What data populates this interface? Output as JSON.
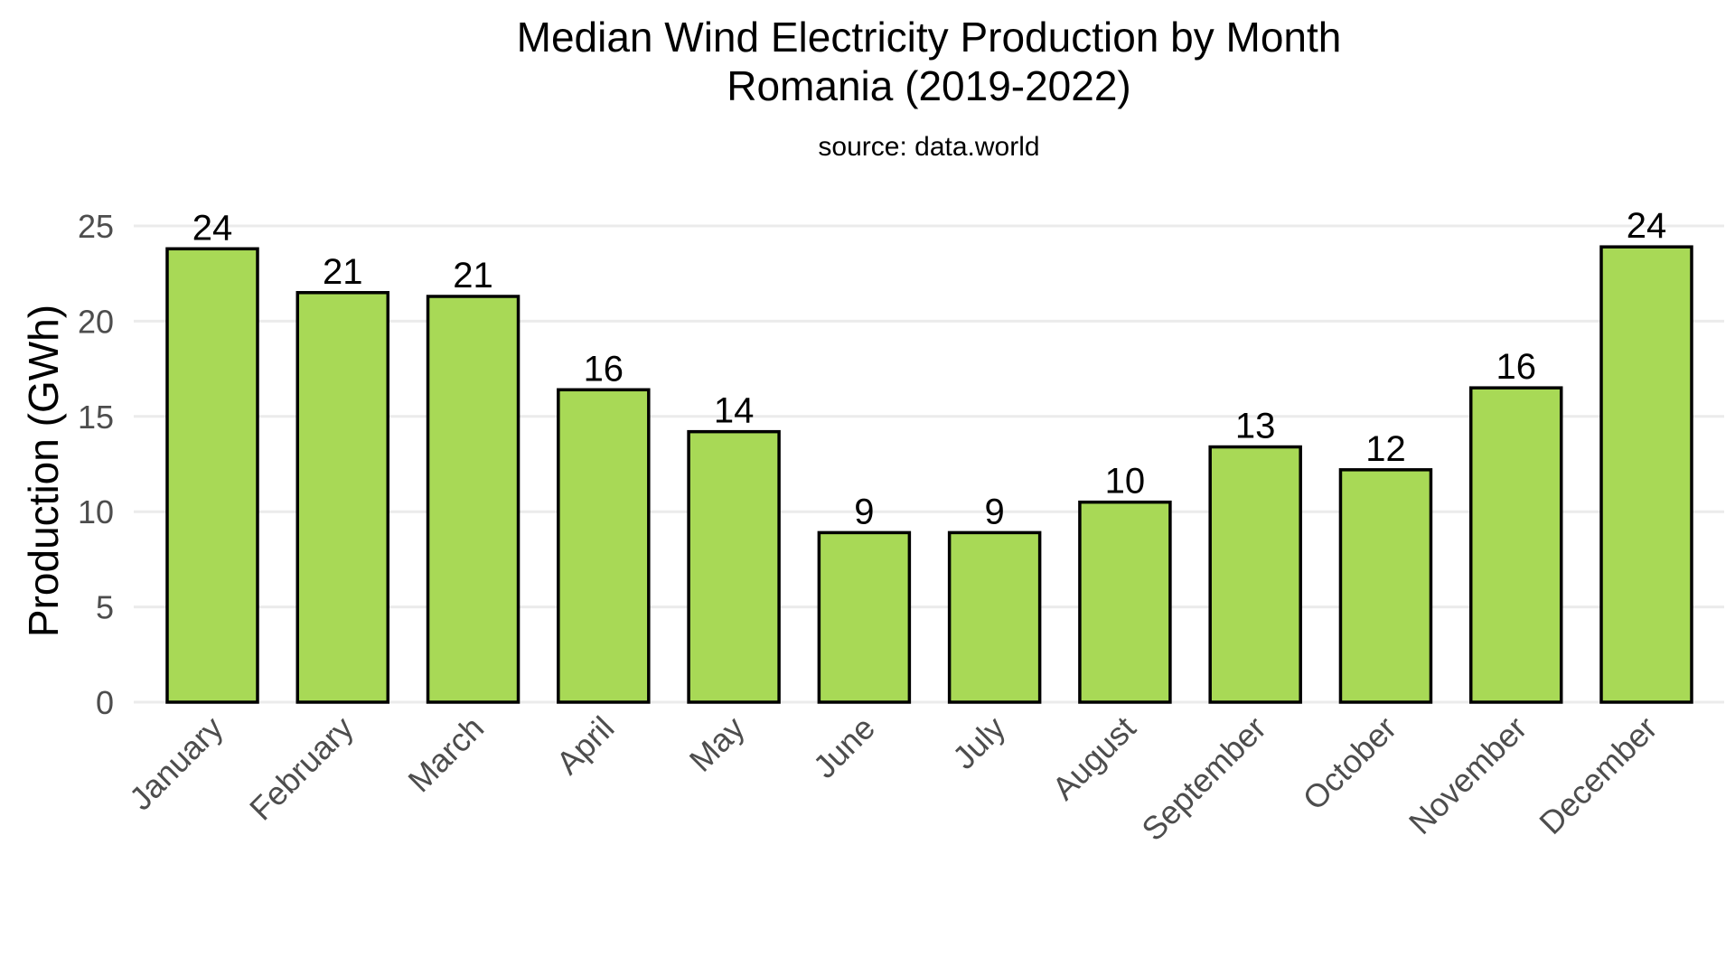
{
  "chart_data": {
    "type": "bar",
    "title": "Median Wind Electricity Production by Month",
    "subtitle": "Romania (2019-2022)",
    "caption": "source: data.world",
    "xlabel": "",
    "ylabel": "Production (GWh)",
    "ylim": [
      0,
      25
    ],
    "yticks": [
      0,
      5,
      10,
      15,
      20,
      25
    ],
    "grid": true,
    "legend": "none",
    "categories": [
      "January",
      "February",
      "March",
      "April",
      "May",
      "June",
      "July",
      "August",
      "September",
      "October",
      "November",
      "December"
    ],
    "values": [
      23.8,
      21.5,
      21.3,
      16.4,
      14.2,
      8.9,
      8.9,
      10.5,
      13.4,
      12.2,
      16.5,
      23.9
    ],
    "value_labels": [
      "24",
      "21",
      "21",
      "16",
      "14",
      "9",
      "9",
      "10",
      "13",
      "12",
      "16",
      "24"
    ],
    "colors": {
      "bar_fill": "#a8d956",
      "bar_stroke": "#000000",
      "grid": "#ebebeb",
      "tick_text": "#4d4d4d"
    }
  }
}
